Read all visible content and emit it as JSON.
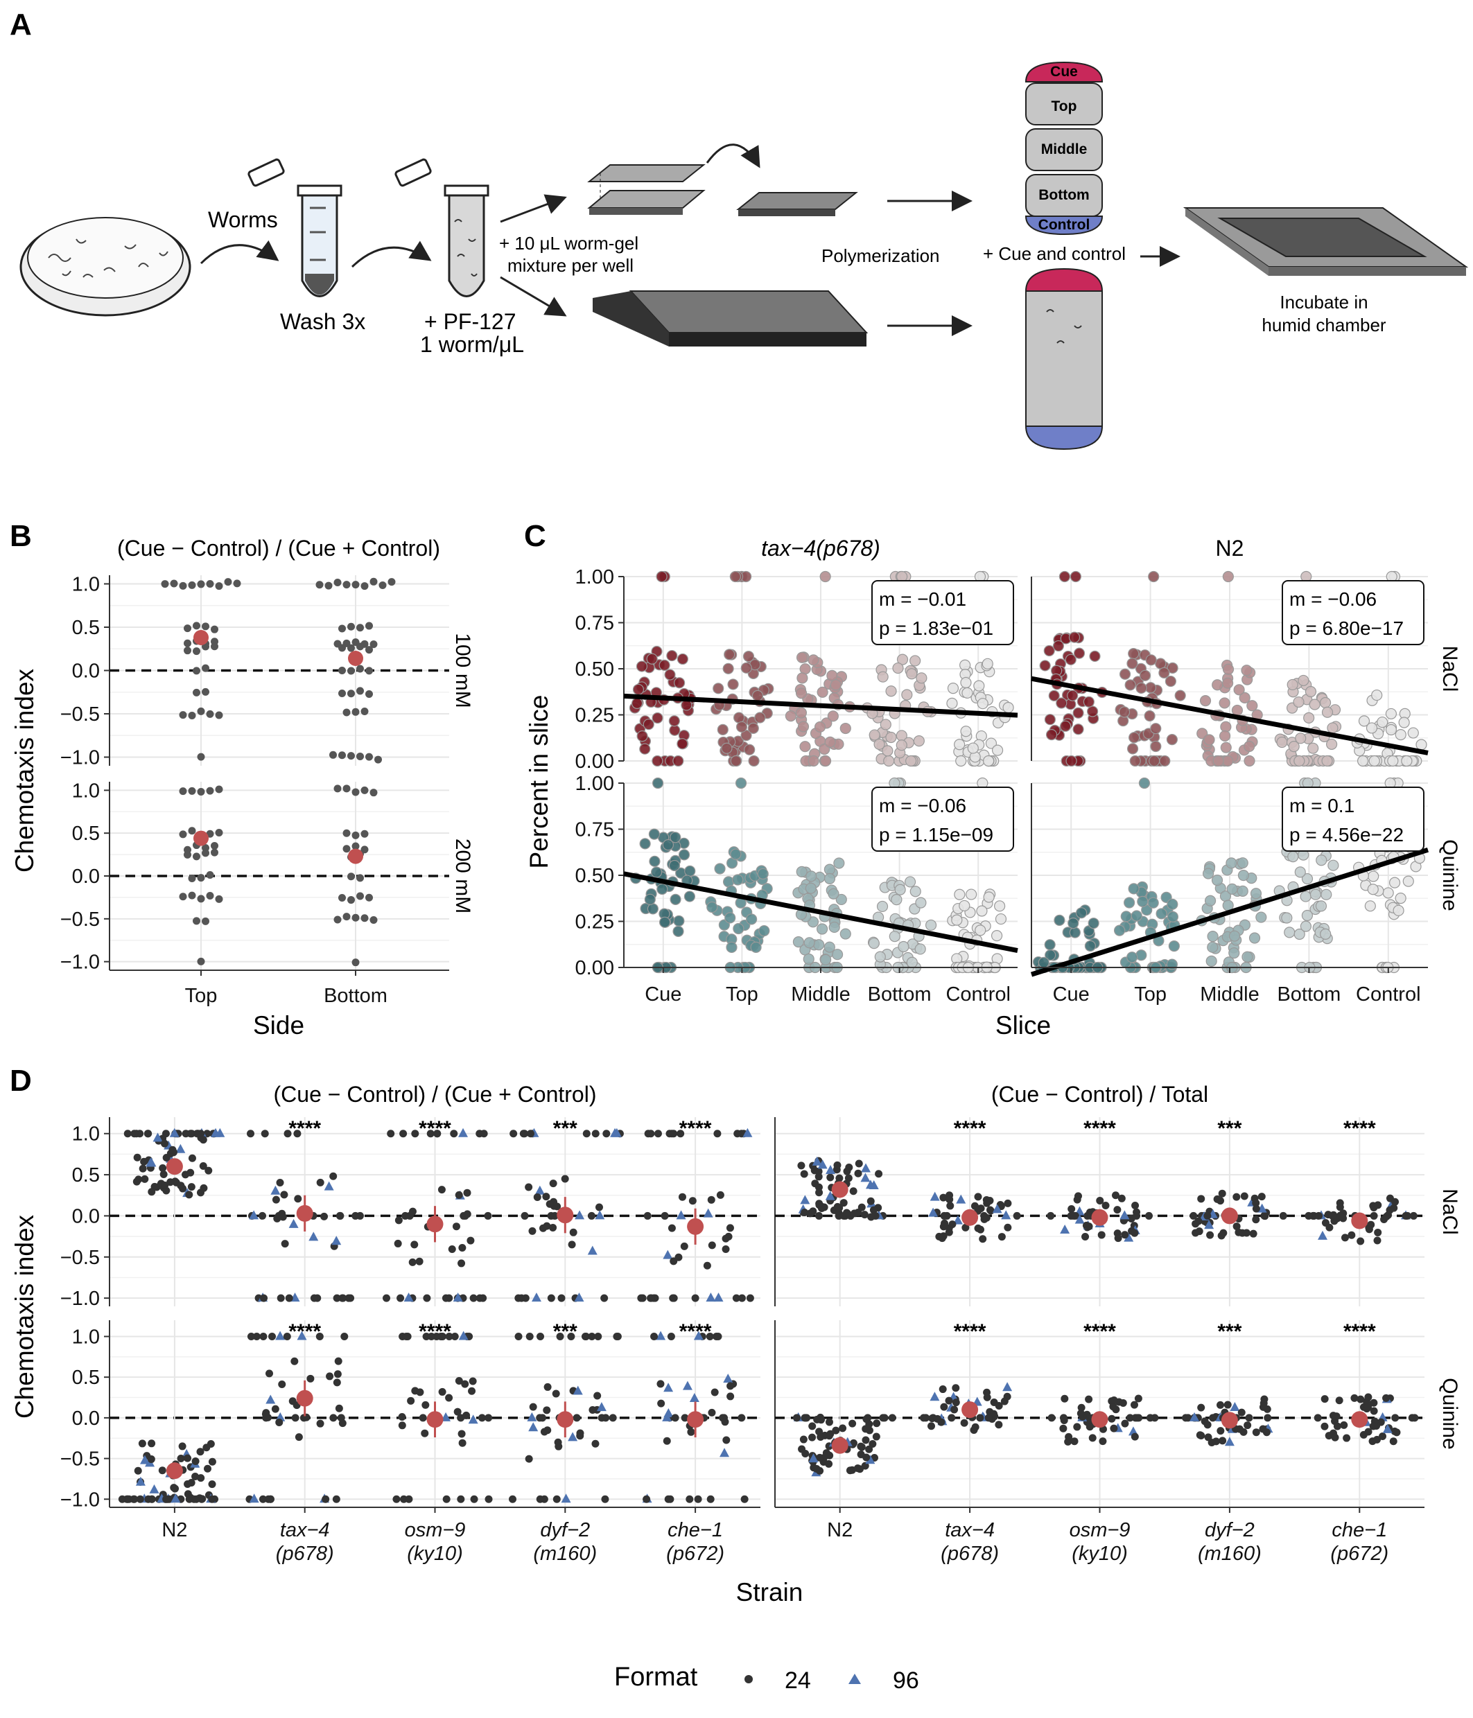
{
  "panels": {
    "A": "A",
    "B": "B",
    "C": "C",
    "D": "D"
  },
  "schematic": {
    "worms": "Worms",
    "wash": "Wash 3x",
    "pf1": "+ PF-127",
    "pf2": "1 worm/μL",
    "mix1": "+ 10 μL worm-gel",
    "mix2": "mixture per well",
    "polymerization": "Polymerization",
    "cue_control": "+ Cue and control",
    "incubate1": "Incubate in",
    "incubate2": "humid chamber",
    "slices": [
      "Cue",
      "Top",
      "Middle",
      "Bottom",
      "Control"
    ],
    "colors": {
      "cue": "#c8285a",
      "control": "#6f7fc8",
      "gel": "#c6c6c6"
    }
  },
  "legend": {
    "title": "Format",
    "items": [
      "24",
      "96"
    ],
    "colors": {
      "24": "#333333",
      "96": "#4e73b0"
    }
  },
  "chart_data": [
    {
      "id": "B",
      "type": "scatter",
      "title": "(Cue − Control) / (Cue + Control)",
      "xlabel": "Side",
      "ylabel": "Chemotaxis index",
      "categories": [
        "Top",
        "Bottom"
      ],
      "facets": [
        "100 mM",
        "200 mM"
      ],
      "ylim": [
        -1.1,
        1.1
      ],
      "yticks": [
        "1.0",
        "0.5",
        "0.0",
        "−0.5",
        "−1.0"
      ],
      "grid": true,
      "reference_line": 0,
      "means": {
        "100 mM": [
          0.38,
          0.14
        ],
        "200 mM": [
          0.44,
          0.23
        ]
      },
      "colors": {
        "points": "#555555",
        "mean": "#c05050"
      }
    },
    {
      "id": "C",
      "type": "scatter",
      "xlabel": "Slice",
      "ylabel": "Percent in slice",
      "categories": [
        "Cue",
        "Top",
        "Middle",
        "Bottom",
        "Control"
      ],
      "columns": [
        "tax−4(p678)",
        "N2"
      ],
      "rows": [
        "NaCl",
        "Quinine"
      ],
      "ylim": [
        0,
        1
      ],
      "yticks": [
        "1.00",
        "0.75",
        "0.50",
        "0.25",
        "0.00"
      ],
      "grid": true,
      "fits": [
        {
          "row": "NaCl",
          "col": "tax−4(p678)",
          "m": "m = −0.01",
          "p": "p = 1.83e−01",
          "y1": 0.34,
          "y5": 0.26
        },
        {
          "row": "NaCl",
          "col": "N2",
          "m": "m = −0.06",
          "p": "p = 6.80e−17",
          "y1": 0.4,
          "y5": 0.09
        },
        {
          "row": "Quinine",
          "col": "tax−4(p678)",
          "m": "m = −0.06",
          "p": "p = 1.15e−09",
          "y1": 0.46,
          "y5": 0.14
        },
        {
          "row": "Quinine",
          "col": "N2",
          "m": "m = 0.1",
          "p": "p = 4.56e−22",
          "y1": 0.04,
          "y5": 0.56
        }
      ],
      "colors": {
        "NaCl": "#7a2a34",
        "Quinine": "#3f6e73"
      }
    },
    {
      "id": "D",
      "type": "scatter",
      "xlabel": "Strain",
      "ylabel": "Chemotaxis index",
      "columns": [
        "(Cue − Control) / (Cue + Control)",
        "(Cue − Control) / Total"
      ],
      "rows": [
        "NaCl",
        "Quinine"
      ],
      "categories": [
        "N2",
        "tax−4",
        "osm−9",
        "dyf−2",
        "che−1"
      ],
      "alleles": [
        "",
        "(p678)",
        "(ky10)",
        "(m160)",
        "(p672)"
      ],
      "ylim": [
        -1.1,
        1.2
      ],
      "yticks": [
        "1.0",
        "0.5",
        "0.0",
        "−0.5",
        "−1.0"
      ],
      "grid": true,
      "reference_line": 0,
      "significance": [
        "",
        "****",
        "****",
        "***",
        "****"
      ],
      "means": {
        "NaCl": {
          "ratio": [
            0.6,
            0.03,
            -0.1,
            0.01,
            -0.13
          ],
          "total": [
            0.32,
            -0.02,
            -0.02,
            0.0,
            -0.06
          ]
        },
        "Quinine": {
          "ratio": [
            -0.65,
            0.24,
            -0.02,
            -0.02,
            -0.02
          ],
          "total": [
            -0.34,
            0.1,
            -0.02,
            -0.03,
            -0.02
          ]
        }
      }
    }
  ]
}
